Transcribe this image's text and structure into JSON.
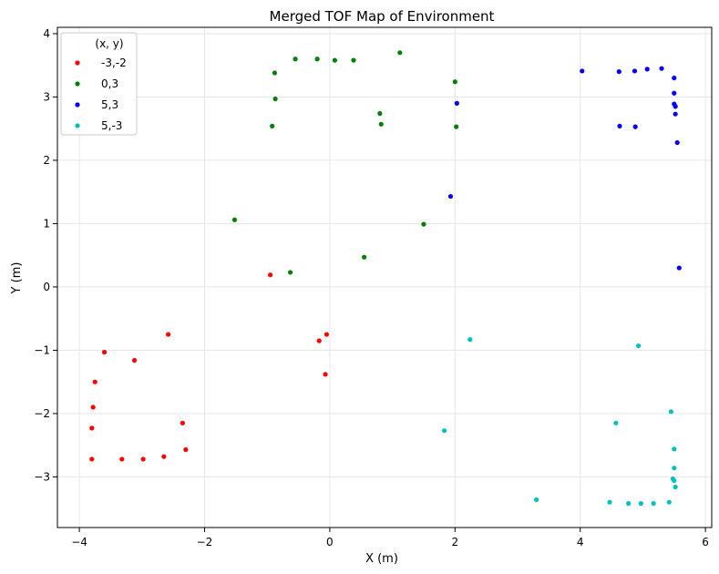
{
  "chart_data": {
    "type": "scatter",
    "title": "Merged TOF Map of Environment",
    "xlabel": "X (m)",
    "ylabel": "Y (m)",
    "xlim": [
      -4.35,
      6.1
    ],
    "ylim": [
      -3.8,
      4.1
    ],
    "xticks": [
      -4,
      -2,
      0,
      2,
      4,
      6
    ],
    "yticks": [
      -3,
      -2,
      -1,
      0,
      1,
      2,
      3,
      4
    ],
    "grid": true,
    "legend": {
      "title": "(x, y)",
      "placement": "top-left"
    },
    "series": [
      {
        "name": "-3,-2",
        "color": "#ff0000",
        "points": [
          [
            -3.8,
            -2.72
          ],
          [
            -3.8,
            -2.23
          ],
          [
            -3.78,
            -1.9
          ],
          [
            -3.75,
            -1.5
          ],
          [
            -3.6,
            -1.03
          ],
          [
            -3.32,
            -2.72
          ],
          [
            -3.12,
            -1.16
          ],
          [
            -2.98,
            -2.72
          ],
          [
            -2.65,
            -2.68
          ],
          [
            -2.58,
            -0.75
          ],
          [
            -2.35,
            -2.15
          ],
          [
            -2.3,
            -2.57
          ],
          [
            -0.95,
            0.19
          ],
          [
            -0.17,
            -0.85
          ],
          [
            -0.05,
            -0.75
          ],
          [
            -0.07,
            -1.38
          ]
        ]
      },
      {
        "name": "0,3",
        "color": "#008000",
        "points": [
          [
            -1.52,
            1.06
          ],
          [
            -0.92,
            2.54
          ],
          [
            -0.88,
            3.38
          ],
          [
            -0.87,
            2.97
          ],
          [
            -0.63,
            0.23
          ],
          [
            -0.55,
            3.6
          ],
          [
            -0.2,
            3.6
          ],
          [
            0.08,
            3.58
          ],
          [
            0.38,
            3.58
          ],
          [
            0.55,
            0.47
          ],
          [
            0.8,
            2.74
          ],
          [
            0.82,
            2.57
          ],
          [
            1.12,
            3.7
          ],
          [
            1.5,
            0.99
          ],
          [
            2.0,
            3.24
          ],
          [
            2.02,
            2.53
          ]
        ]
      },
      {
        "name": "5,3",
        "color": "#0000ff",
        "points": [
          [
            1.93,
            1.43
          ],
          [
            2.03,
            2.9
          ],
          [
            4.03,
            3.41
          ],
          [
            4.62,
            3.4
          ],
          [
            4.63,
            2.54
          ],
          [
            4.87,
            3.41
          ],
          [
            4.88,
            2.53
          ],
          [
            5.07,
            3.44
          ],
          [
            5.3,
            3.45
          ],
          [
            5.5,
            3.3
          ],
          [
            5.5,
            3.06
          ],
          [
            5.5,
            2.89
          ],
          [
            5.52,
            2.85
          ],
          [
            5.52,
            2.73
          ],
          [
            5.55,
            2.28
          ],
          [
            5.58,
            0.3
          ]
        ]
      },
      {
        "name": "5,-3",
        "color": "#00bfbf",
        "points": [
          [
            1.83,
            -2.27
          ],
          [
            2.24,
            -0.83
          ],
          [
            3.3,
            -3.36
          ],
          [
            4.47,
            -3.4
          ],
          [
            4.57,
            -2.15
          ],
          [
            4.77,
            -3.42
          ],
          [
            4.93,
            -0.93
          ],
          [
            4.97,
            -3.42
          ],
          [
            5.17,
            -3.42
          ],
          [
            5.42,
            -3.4
          ],
          [
            5.45,
            -1.97
          ],
          [
            5.48,
            -3.03
          ],
          [
            5.5,
            -3.06
          ],
          [
            5.5,
            -2.86
          ],
          [
            5.5,
            -2.56
          ],
          [
            5.52,
            -3.16
          ]
        ]
      }
    ]
  }
}
